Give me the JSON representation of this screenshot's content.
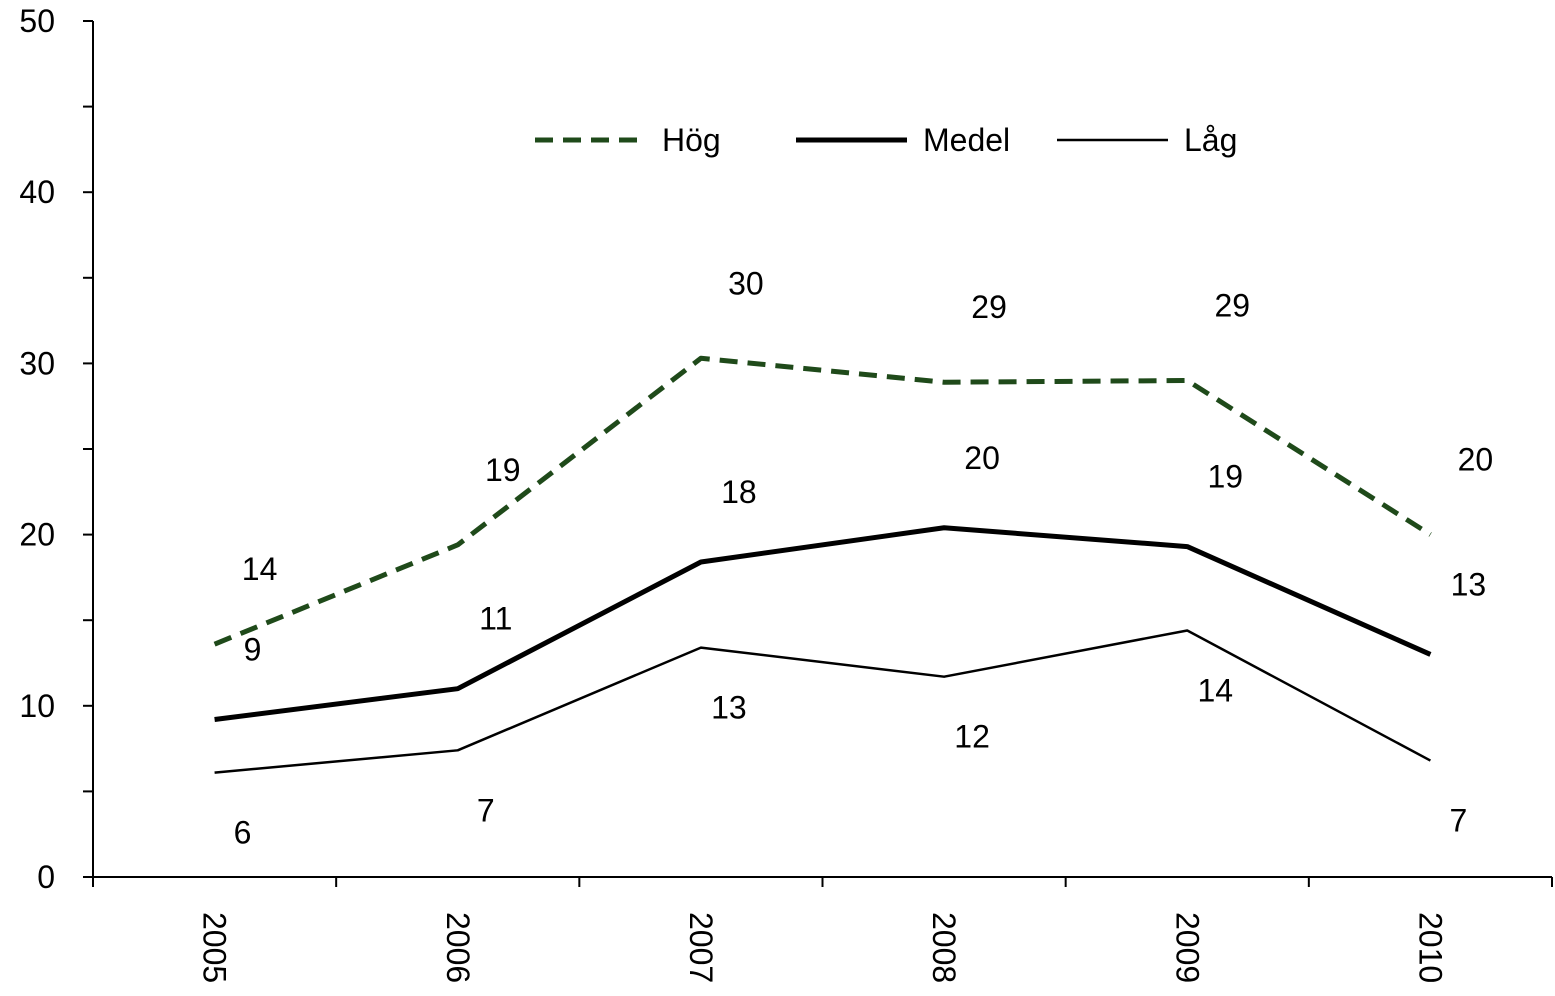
{
  "chart_data": {
    "type": "line",
    "categories": [
      "2005",
      "2006",
      "2007",
      "2008",
      "2009",
      "2010"
    ],
    "series": [
      {
        "name": "Hög",
        "color": "#1f4a1a",
        "line_style": "dashed",
        "values": [
          13.6,
          19.4,
          30.3,
          28.9,
          29.0,
          20.0
        ],
        "value_labels": [
          "14",
          "19",
          "30",
          "29",
          "29",
          "20"
        ]
      },
      {
        "name": "Medel",
        "color": "#000000",
        "line_style": "solid",
        "values": [
          9.2,
          11.0,
          18.4,
          20.4,
          19.3,
          13.0
        ],
        "value_labels": [
          "9",
          "11",
          "18",
          "20",
          "19",
          "13"
        ]
      },
      {
        "name": "Låg",
        "color": "#000000",
        "line_style": "solid",
        "values": [
          6.1,
          7.4,
          13.4,
          11.7,
          14.4,
          6.8
        ],
        "value_labels": [
          "6",
          "7",
          "13",
          "12",
          "14",
          "7"
        ]
      }
    ],
    "ylim": [
      0,
      50
    ],
    "yticks": [
      0,
      10,
      20,
      30,
      40,
      50
    ],
    "minor_yticks": [
      5,
      15,
      25,
      35,
      45
    ],
    "grid": false,
    "legend": "top"
  }
}
